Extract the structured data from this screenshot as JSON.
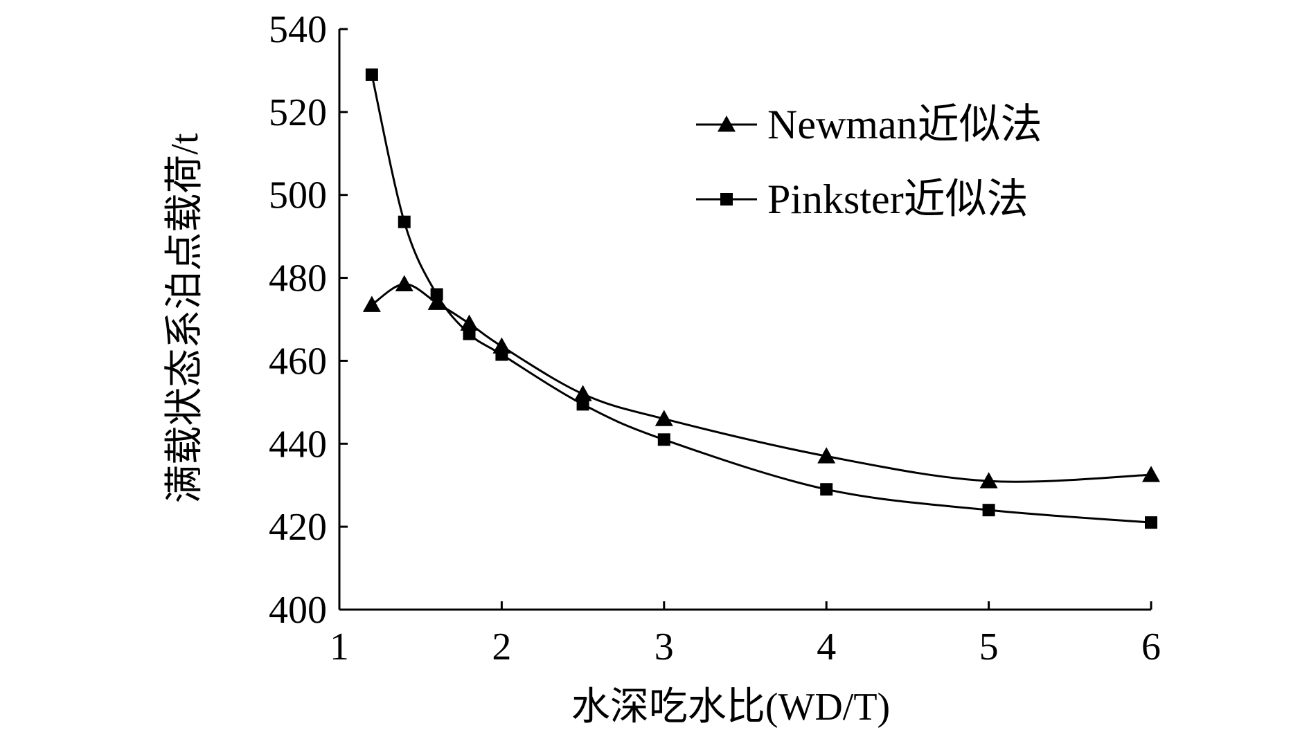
{
  "chart_data": {
    "type": "line",
    "title": "",
    "xlabel": "水深吃水比(WD/T)",
    "ylabel": "满载状态系泊点载荷/t",
    "xlim": [
      1,
      6
    ],
    "ylim": [
      400,
      540
    ],
    "xticks": [
      1,
      2,
      3,
      4,
      5,
      6
    ],
    "yticks": [
      400,
      420,
      440,
      460,
      480,
      500,
      520,
      540
    ],
    "grid": false,
    "legend_position": "top-right",
    "series": [
      {
        "name": "Newman近似法",
        "marker": "triangle",
        "color": "#000000",
        "x": [
          1.2,
          1.4,
          1.6,
          1.8,
          2.0,
          2.5,
          3.0,
          4.0,
          5.0,
          6.0
        ],
        "y": [
          473.5,
          478.5,
          474,
          469,
          463.5,
          452,
          446,
          437,
          431,
          432.5
        ]
      },
      {
        "name": "Pinkster近似法",
        "marker": "square",
        "color": "#000000",
        "x": [
          1.2,
          1.4,
          1.6,
          1.8,
          2.0,
          2.5,
          3.0,
          4.0,
          5.0,
          6.0
        ],
        "y": [
          529,
          493.5,
          476,
          466.5,
          461.5,
          449.5,
          441,
          429,
          424,
          421
        ]
      }
    ]
  }
}
